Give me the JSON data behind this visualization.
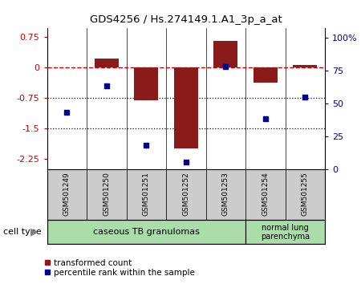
{
  "title": "GDS4256 / Hs.274149.1.A1_3p_a_at",
  "samples": [
    "GSM501249",
    "GSM501250",
    "GSM501251",
    "GSM501252",
    "GSM501253",
    "GSM501254",
    "GSM501255"
  ],
  "red_values": [
    0.0,
    0.2,
    -0.82,
    -2.0,
    0.65,
    -0.38,
    0.05
  ],
  "blue_values": [
    43,
    63,
    18,
    5,
    78,
    38,
    55
  ],
  "left_ylim": [
    -2.5,
    0.95
  ],
  "right_ylim": [
    0,
    107
  ],
  "left_yticks": [
    0.75,
    0,
    -0.75,
    -1.5,
    -2.25
  ],
  "right_yticks": [
    0,
    25,
    50,
    75,
    100
  ],
  "right_yticklabels": [
    "0",
    "25",
    "50",
    "75",
    "100%"
  ],
  "bar_color": "#8B1A1A",
  "dot_color": "#00008B",
  "ref_line_color": "#CC0000",
  "group1_label": "caseous TB granulomas",
  "group2_label": "normal lung\nparenchyma",
  "group1_color": "#AADDAA",
  "group2_color": "#AADDAA",
  "cell_type_label": "cell type",
  "legend_red": "transformed count",
  "legend_blue": "percentile rank within the sample",
  "dotted_lines": [
    -0.75,
    -1.5
  ],
  "dashed_line_y": 0,
  "sample_box_color": "#CCCCCC",
  "bar_width": 0.6
}
